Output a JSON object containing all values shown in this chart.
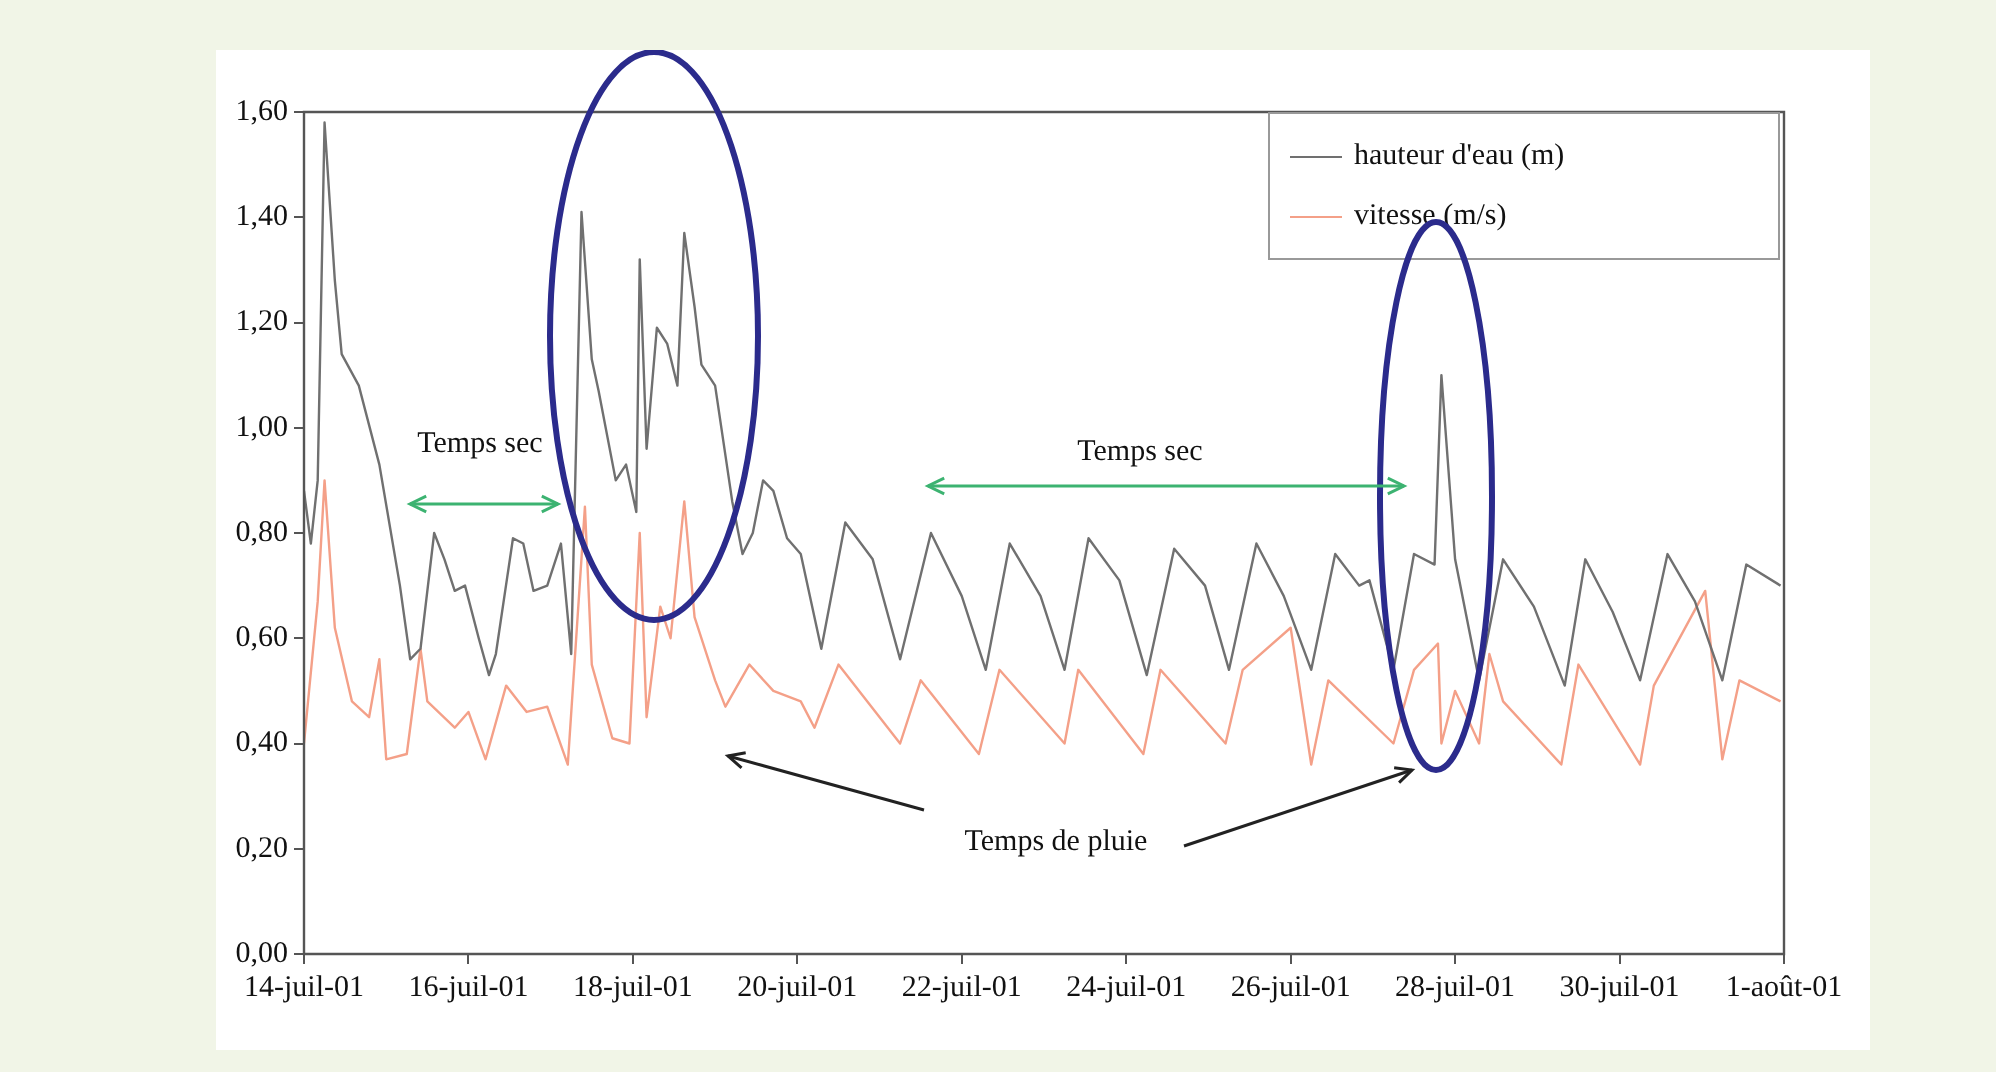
{
  "chart_data": {
    "type": "line",
    "xlim": [
      "--07-14",
      "--08-01"
    ],
    "xticks": [
      {
        "value": "--07-14",
        "label": "14-juil-01"
      },
      {
        "value": "--07-16",
        "label": "16-juil-01"
      },
      {
        "value": "--07-18",
        "label": "18-juil-01"
      },
      {
        "value": "--07-20",
        "label": "20-juil-01"
      },
      {
        "value": "--07-22",
        "label": "22-juil-01"
      },
      {
        "value": "--07-24",
        "label": "24-juil-01"
      },
      {
        "value": "--07-26",
        "label": "26-juil-01"
      },
      {
        "value": "--07-28",
        "label": "28-juil-01"
      },
      {
        "value": "--07-30",
        "label": "30-juil-01"
      },
      {
        "value": "--08-01",
        "label": "1-août-01"
      }
    ],
    "ylim": [
      0,
      1.6
    ],
    "yticks": [
      {
        "value": 0,
        "label": "0,00"
      },
      {
        "value": 0.2,
        "label": "0,20"
      },
      {
        "value": 0.4,
        "label": "0,40"
      },
      {
        "value": 0.6,
        "label": "0,60"
      },
      {
        "value": 0.8,
        "label": "0,80"
      },
      {
        "value": 1.0,
        "label": "1,00"
      },
      {
        "value": 1.2,
        "label": "1,20"
      },
      {
        "value": 1.4,
        "label": "1,40"
      },
      {
        "value": 1.6,
        "label": "1,60"
      }
    ],
    "grid": false,
    "legend": "top right",
    "marker": "none",
    "line_style": "solid",
    "series": [
      {
        "name": "hauteur d'eau (m)",
        "color": "#707070",
        "x": [
          "--07-14T00:00",
          "--07-14T02:00",
          "--07-14T04:00",
          "--07-14T06:00",
          "--07-14T09:00",
          "--07-14T11:00",
          "--07-14T16:00",
          "--07-14T22:00",
          "--07-15T04:00",
          "--07-15T07:00",
          "--07-15T10:00",
          "--07-15T14:00",
          "--07-15T17:00",
          "--07-15T20:00",
          "--07-15T23:00",
          "--07-16T03:00",
          "--07-16T06:00",
          "--07-16T08:00",
          "--07-16T13:00",
          "--07-16T16:00",
          "--07-16T19:00",
          "--07-16T23:00",
          "--07-17T03:00",
          "--07-17T06:00",
          "--07-17T09:00",
          "--07-17T12:00",
          "--07-17T14:00",
          "--07-17T19:00",
          "--07-17T22:00",
          "--07-18T01:00",
          "--07-18T02:00",
          "--07-18T04:00",
          "--07-18T07:00",
          "--07-18T10:00",
          "--07-18T13:00",
          "--07-18T15:00",
          "--07-18T18:00",
          "--07-18T20:00",
          "--07-19T00:00",
          "--07-19T05:00",
          "--07-19T08:00",
          "--07-19T11:00",
          "--07-19T14:00",
          "--07-19T17:00",
          "--07-19T21:00",
          "--07-20T01:00",
          "--07-20T07:00",
          "--07-20T14:00",
          "--07-20T22:00",
          "--07-21T06:00",
          "--07-21T15:00",
          "--07-22T00:00",
          "--07-22T07:00",
          "--07-22T14:00",
          "--07-22T23:00",
          "--07-23T06:00",
          "--07-23T13:00",
          "--07-23T22:00",
          "--07-24T06:00",
          "--07-24T14:00",
          "--07-24T23:00",
          "--07-25T06:00",
          "--07-25T14:00",
          "--07-25T22:00",
          "--07-26T06:00",
          "--07-26T13:00",
          "--07-26T20:00",
          "--07-26T23:00",
          "--07-27T06:00",
          "--07-27T12:00",
          "--07-27T18:00",
          "--07-27T20:00",
          "--07-28T00:00",
          "--07-28T07:00",
          "--07-28T14:00",
          "--07-28T23:00",
          "--07-29T08:00",
          "--07-29T14:00",
          "--07-29T22:00",
          "--07-30T06:00",
          "--07-30T14:00",
          "--07-30T22:00",
          "--07-31T06:00",
          "--07-31T13:00",
          "--07-31T23:00"
        ],
        "values": [
          0.88,
          0.78,
          0.9,
          1.58,
          1.28,
          1.14,
          1.08,
          0.93,
          0.7,
          0.56,
          0.58,
          0.8,
          0.75,
          0.69,
          0.7,
          0.6,
          0.53,
          0.57,
          0.79,
          0.78,
          0.69,
          0.7,
          0.78,
          0.57,
          1.41,
          1.13,
          1.07,
          0.9,
          0.93,
          0.84,
          1.32,
          0.96,
          1.19,
          1.16,
          1.08,
          1.37,
          1.23,
          1.12,
          1.08,
          0.86,
          0.76,
          0.8,
          0.9,
          0.88,
          0.79,
          0.76,
          0.58,
          0.82,
          0.75,
          0.56,
          0.8,
          0.68,
          0.54,
          0.78,
          0.68,
          0.54,
          0.79,
          0.71,
          0.53,
          0.77,
          0.7,
          0.54,
          0.78,
          0.68,
          0.54,
          0.76,
          0.7,
          0.71,
          0.54,
          0.76,
          0.74,
          1.1,
          0.75,
          0.52,
          0.75,
          0.66,
          0.51,
          0.75,
          0.65,
          0.52,
          0.76,
          0.67,
          0.52,
          0.74,
          0.7
        ]
      },
      {
        "name": "vitesse (m/s)",
        "color": "#f4a088",
        "x": [
          "--07-14T00:00",
          "--07-14T04:00",
          "--07-14T06:00",
          "--07-14T09:00",
          "--07-14T14:00",
          "--07-14T19:00",
          "--07-14T22:00",
          "--07-15T00:00",
          "--07-15T06:00",
          "--07-15T10:00",
          "--07-15T12:00",
          "--07-15T20:00",
          "--07-16T00:00",
          "--07-16T05:00",
          "--07-16T11:00",
          "--07-16T17:00",
          "--07-16T23:00",
          "--07-17T05:00",
          "--07-17T10:00",
          "--07-17T12:00",
          "--07-17T18:00",
          "--07-17T23:00",
          "--07-18T02:00",
          "--07-18T04:00",
          "--07-18T08:00",
          "--07-18T11:00",
          "--07-18T15:00",
          "--07-18T18:00",
          "--07-19T00:00",
          "--07-19T03:00",
          "--07-19T10:00",
          "--07-19T17:00",
          "--07-20T01:00",
          "--07-20T05:00",
          "--07-20T12:00",
          "--07-21T06:00",
          "--07-21T12:00",
          "--07-22T05:00",
          "--07-22T11:00",
          "--07-23T06:00",
          "--07-23T10:00",
          "--07-24T05:00",
          "--07-24T10:00",
          "--07-25T05:00",
          "--07-25T10:00",
          "--07-26T00:00",
          "--07-26T06:00",
          "--07-26T11:00",
          "--07-27T06:00",
          "--07-27T12:00",
          "--07-27T19:00",
          "--07-27T20:00",
          "--07-28T00:00",
          "--07-28T07:00",
          "--07-28T10:00",
          "--07-28T14:00",
          "--07-29T07:00",
          "--07-29T12:00",
          "--07-30T06:00",
          "--07-30T10:00",
          "--07-31T01:00",
          "--07-31T06:00",
          "--07-31T11:00",
          "--07-31T23:00"
        ],
        "values": [
          0.4,
          0.67,
          0.9,
          0.62,
          0.48,
          0.45,
          0.56,
          0.37,
          0.38,
          0.58,
          0.48,
          0.43,
          0.46,
          0.37,
          0.51,
          0.46,
          0.47,
          0.36,
          0.85,
          0.55,
          0.41,
          0.4,
          0.8,
          0.45,
          0.66,
          0.6,
          0.86,
          0.64,
          0.52,
          0.47,
          0.55,
          0.5,
          0.48,
          0.43,
          0.55,
          0.4,
          0.52,
          0.38,
          0.54,
          0.4,
          0.54,
          0.38,
          0.54,
          0.4,
          0.54,
          0.62,
          0.36,
          0.52,
          0.4,
          0.54,
          0.59,
          0.4,
          0.5,
          0.4,
          0.57,
          0.48,
          0.36,
          0.55,
          0.36,
          0.51,
          0.69,
          0.37,
          0.52,
          0.48
        ]
      }
    ],
    "annotations": [
      "Temps sec",
      "Temps sec",
      "Temps de pluie"
    ]
  }
}
